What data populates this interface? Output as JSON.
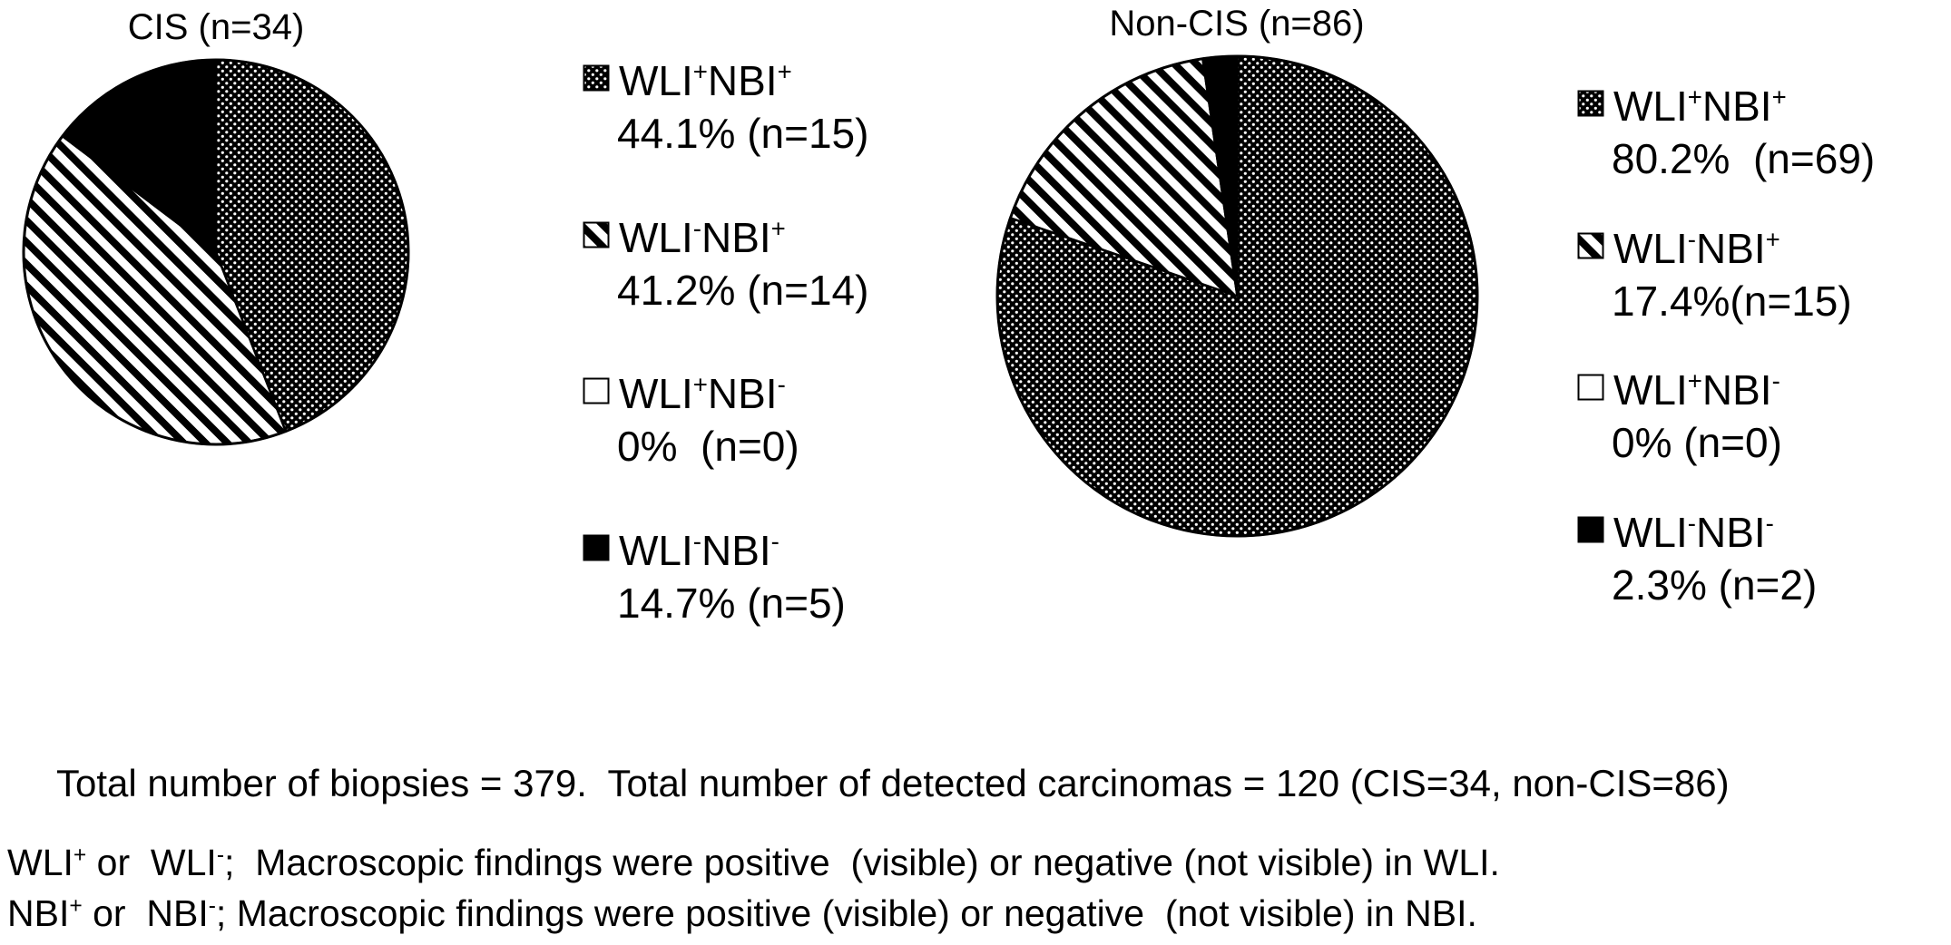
{
  "colors": {
    "ink": "#000000",
    "paper": "#ffffff"
  },
  "figure": {
    "footer": "Total number of biopsies = 379.  Total number of detected carcinomas = 120 (CIS=34, non-CIS=86)",
    "footnotes": [
      {
        "parts": [
          {
            "t": "WLI"
          },
          {
            "s": "+"
          },
          {
            "t": " or  WLI"
          },
          {
            "s": "-"
          },
          {
            "t": ";  Macroscopic findings were positive  (visible) or negative (not visible) in WLI."
          }
        ]
      },
      {
        "parts": [
          {
            "t": "NBI"
          },
          {
            "s": "+"
          },
          {
            "t": " or  NBI"
          },
          {
            "s": "-"
          },
          {
            "t": "; Macroscopic findings were positive (visible) or negative  (not visible) in NBI."
          }
        ]
      }
    ]
  },
  "chart_data": [
    {
      "type": "pie",
      "title": "CIS (n=34)",
      "n_total": 34,
      "legend_position": "right",
      "slices": [
        {
          "label": "WLI+NBI+",
          "label_parts": [
            {
              "t": "WLI"
            },
            {
              "s": "+"
            },
            {
              "t": "NBI"
            },
            {
              "s": "+"
            }
          ],
          "percent": 44.1,
          "n": 15,
          "value_text": "44.1% (n=15)",
          "pattern": "dots"
        },
        {
          "label": "WLI-NBI+",
          "label_parts": [
            {
              "t": "WLI"
            },
            {
              "s": "-"
            },
            {
              "t": "NBI"
            },
            {
              "s": "+"
            }
          ],
          "percent": 41.2,
          "n": 14,
          "value_text": "41.2% (n=14)",
          "pattern": "stripes"
        },
        {
          "label": "WLI+NBI-",
          "label_parts": [
            {
              "t": "WLI"
            },
            {
              "s": "+"
            },
            {
              "t": "NBI"
            },
            {
              "s": "-"
            }
          ],
          "percent": 0,
          "n": 0,
          "value_text": "0%  (n=0)",
          "pattern": "white"
        },
        {
          "label": "WLI-NBI-",
          "label_parts": [
            {
              "t": "WLI"
            },
            {
              "s": "-"
            },
            {
              "t": "NBI"
            },
            {
              "s": "-"
            }
          ],
          "percent": 14.7,
          "n": 5,
          "value_text": "14.7% (n=5)",
          "pattern": "black"
        }
      ]
    },
    {
      "type": "pie",
      "title": "Non-CIS (n=86)",
      "n_total": 86,
      "legend_position": "right",
      "slices": [
        {
          "label": "WLI+NBI+",
          "label_parts": [
            {
              "t": "WLI"
            },
            {
              "s": "+"
            },
            {
              "t": "NBI"
            },
            {
              "s": "+"
            }
          ],
          "percent": 80.2,
          "n": 69,
          "value_text": "80.2%  (n=69)",
          "pattern": "dots"
        },
        {
          "label": "WLI-NBI+",
          "label_parts": [
            {
              "t": "WLI"
            },
            {
              "s": "-"
            },
            {
              "t": "NBI"
            },
            {
              "s": "+"
            }
          ],
          "percent": 17.4,
          "n": 15,
          "value_text": "17.4%(n=15)",
          "pattern": "stripes"
        },
        {
          "label": "WLI+NBI-",
          "label_parts": [
            {
              "t": "WLI"
            },
            {
              "s": "+"
            },
            {
              "t": "NBI"
            },
            {
              "s": "-"
            }
          ],
          "percent": 0,
          "n": 0,
          "value_text": "0% (n=0)",
          "pattern": "white"
        },
        {
          "label": "WLI-NBI-",
          "label_parts": [
            {
              "t": "WLI"
            },
            {
              "s": "-"
            },
            {
              "t": "NBI"
            },
            {
              "s": "-"
            }
          ],
          "percent": 2.3,
          "n": 2,
          "value_text": "2.3% (n=2)",
          "pattern": "black"
        }
      ]
    }
  ]
}
